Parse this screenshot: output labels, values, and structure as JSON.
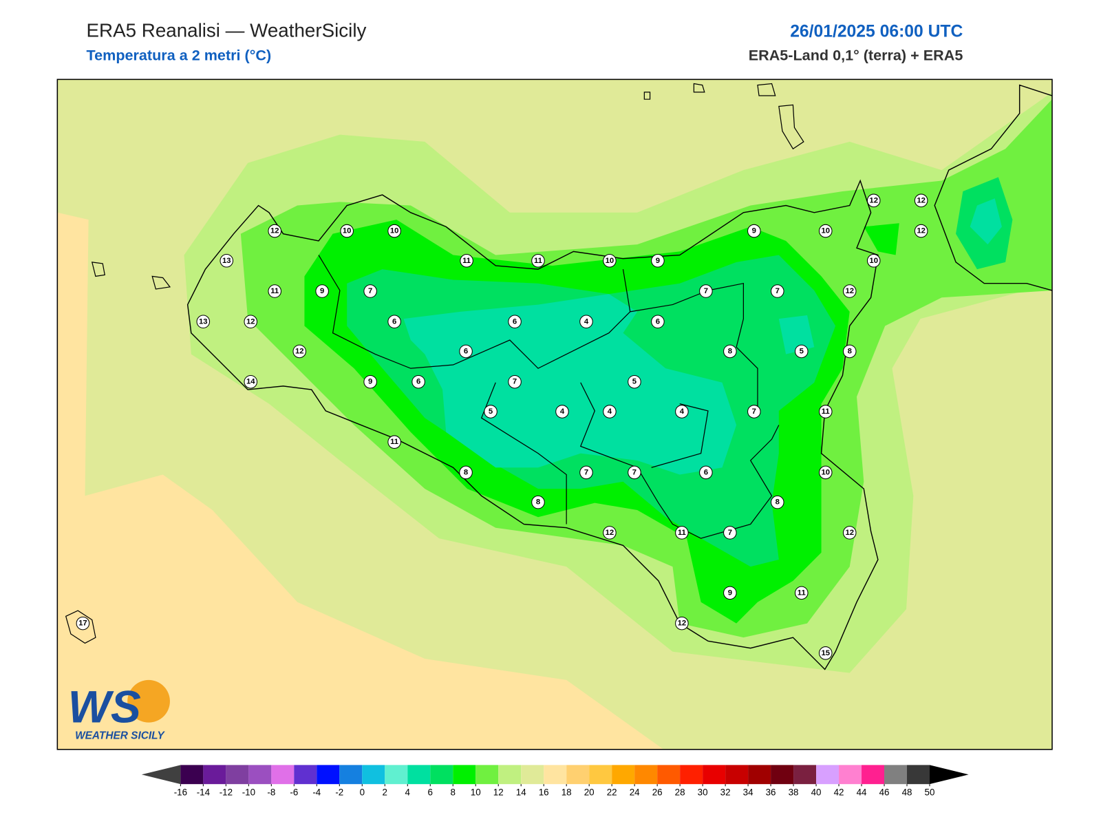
{
  "header": {
    "title": "ERA5 Reanalisi — WeatherSicily",
    "subtitle": "Temperatura a 2 metri (°C)",
    "date": "26/01/2025 06:00 UTC",
    "source": "ERA5-Land 0,1° (terra) + ERA5"
  },
  "stations": [
    12,
    10,
    10,
    13,
    11,
    9,
    7,
    13,
    12,
    6,
    6,
    4,
    6,
    12,
    6,
    14,
    9,
    6,
    7,
    5,
    5,
    4,
    4,
    4,
    11,
    8,
    7,
    7,
    6,
    8,
    12,
    11,
    7,
    9,
    12,
    9,
    10,
    12,
    12,
    12,
    10,
    11,
    11,
    10,
    9,
    7,
    7,
    12,
    8,
    5,
    8,
    7,
    11,
    10,
    8,
    12,
    11,
    15,
    17
  ],
  "colorbar": {
    "ticks": [
      -16,
      -14,
      -12,
      -10,
      -8,
      -6,
      -4,
      -2,
      0,
      2,
      4,
      6,
      8,
      10,
      12,
      14,
      16,
      18,
      20,
      22,
      24,
      26,
      28,
      30,
      32,
      34,
      36,
      38,
      40,
      42,
      44,
      46,
      48,
      50
    ],
    "colors": [
      "#3b0050",
      "#6a1b9a",
      "#7f3fa0",
      "#9b4fc0",
      "#e070e8",
      "#6030d0",
      "#0010ff",
      "#1580e0",
      "#10c0e0",
      "#60f0d0",
      "#00e0a0",
      "#00e060",
      "#00f000",
      "#70f040",
      "#c0f080",
      "#e0ea98",
      "#ffe4a0",
      "#ffd070",
      "#ffc840",
      "#ffa800",
      "#ff8800",
      "#ff5a00",
      "#ff2000",
      "#e80000",
      "#c80000",
      "#a00000",
      "#700010",
      "#7a2040",
      "#d8a0ff",
      "#ff80d0",
      "#ff2090",
      "#808080",
      "#383838"
    ],
    "under": "#404040",
    "over": "#000000"
  },
  "logo": {
    "mark": "WS",
    "text": "WEATHER SICILY"
  }
}
